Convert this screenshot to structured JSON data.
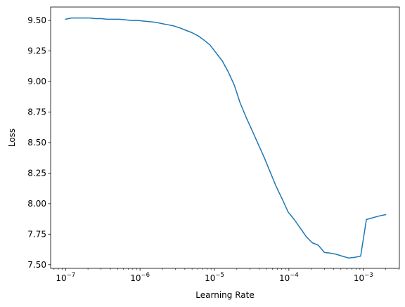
{
  "chart_data": {
    "type": "line",
    "xlabel": "Learning Rate",
    "ylabel": "Loss",
    "x_scale": "log",
    "xlim": [
      6.3e-08,
      0.00305
    ],
    "ylim": [
      7.47,
      9.61
    ],
    "grid": false,
    "color": "#1f77b4",
    "x_ticks": [
      {
        "value": 1e-07,
        "base": "10",
        "exp": "−7"
      },
      {
        "value": 1e-06,
        "base": "10",
        "exp": "−6"
      },
      {
        "value": 1e-05,
        "base": "10",
        "exp": "−5"
      },
      {
        "value": 0.0001,
        "base": "10",
        "exp": "−4"
      },
      {
        "value": 0.001,
        "base": "10",
        "exp": "−3"
      }
    ],
    "y_ticks": [
      "7.50",
      "7.75",
      "8.00",
      "8.25",
      "8.50",
      "8.75",
      "9.00",
      "9.25",
      "9.50"
    ],
    "series": [
      {
        "x": [
          1e-07,
          1.2e-07,
          1.45e-07,
          1.75e-07,
          2.1e-07,
          2.5e-07,
          3e-07,
          3.6e-07,
          4.4e-07,
          5.3e-07,
          6.4e-07,
          7.7e-07,
          9.3e-07,
          1.12e-06,
          1.35e-06,
          1.62e-06,
          1.95e-06,
          2.35e-06,
          2.85e-06,
          3.4e-06,
          4.1e-06,
          5e-06,
          6e-06,
          7.2e-06,
          8.7e-06,
          1.05e-05,
          1.27e-05,
          1.53e-05,
          1.85e-05,
          2.2e-05,
          2.65e-05,
          3.2e-05,
          3.85e-05,
          4.65e-05,
          5.6e-05,
          6.75e-05,
          8.1e-05,
          9.8e-05,
          0.000118,
          0.000142,
          0.000171,
          0.000206,
          0.000248,
          0.0003,
          0.00036,
          0.000435,
          0.00052,
          0.00063,
          0.00076,
          0.00092,
          0.0011,
          0.00135,
          0.00165,
          0.002
        ],
        "y": [
          9.51,
          9.52,
          9.52,
          9.52,
          9.52,
          9.515,
          9.515,
          9.51,
          9.51,
          9.51,
          9.505,
          9.5,
          9.5,
          9.495,
          9.49,
          9.485,
          9.475,
          9.465,
          9.455,
          9.44,
          9.42,
          9.4,
          9.375,
          9.34,
          9.3,
          9.235,
          9.17,
          9.08,
          8.97,
          8.83,
          8.71,
          8.6,
          8.49,
          8.38,
          8.26,
          8.14,
          8.04,
          7.93,
          7.87,
          7.8,
          7.73,
          7.68,
          7.66,
          7.6,
          7.595,
          7.585,
          7.57,
          7.555,
          7.56,
          7.57,
          7.87,
          7.885,
          7.9,
          7.91
        ]
      }
    ]
  }
}
